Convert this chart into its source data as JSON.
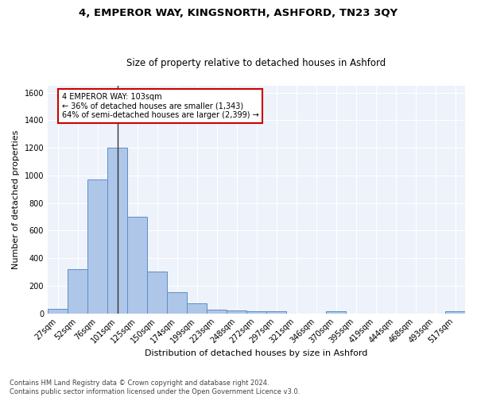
{
  "title1": "4, EMPEROR WAY, KINGSNORTH, ASHFORD, TN23 3QY",
  "title2": "Size of property relative to detached houses in Ashford",
  "xlabel": "Distribution of detached houses by size in Ashford",
  "ylabel": "Number of detached properties",
  "categories": [
    "27sqm",
    "52sqm",
    "76sqm",
    "101sqm",
    "125sqm",
    "150sqm",
    "174sqm",
    "199sqm",
    "223sqm",
    "248sqm",
    "272sqm",
    "297sqm",
    "321sqm",
    "346sqm",
    "370sqm",
    "395sqm",
    "419sqm",
    "444sqm",
    "468sqm",
    "493sqm",
    "517sqm"
  ],
  "values": [
    30,
    320,
    970,
    1200,
    700,
    305,
    155,
    70,
    27,
    18,
    14,
    13,
    0,
    0,
    12,
    0,
    0,
    0,
    0,
    0,
    12
  ],
  "bar_color": "#aec6e8",
  "bar_edge_color": "#5b8fc9",
  "highlight_bar_index": 3,
  "highlight_line_color": "#333333",
  "annotation_text": "4 EMPEROR WAY: 103sqm\n← 36% of detached houses are smaller (1,343)\n64% of semi-detached houses are larger (2,399) →",
  "annotation_box_color": "#ffffff",
  "annotation_box_edge": "#cc0000",
  "ylim": [
    0,
    1650
  ],
  "yticks": [
    0,
    200,
    400,
    600,
    800,
    1000,
    1200,
    1400,
    1600
  ],
  "bg_color": "#eef2fa",
  "grid_color": "#ffffff",
  "footnote": "Contains HM Land Registry data © Crown copyright and database right 2024.\nContains public sector information licensed under the Open Government Licence v3.0.",
  "title1_fontsize": 9.5,
  "title2_fontsize": 8.5,
  "xlabel_fontsize": 8,
  "ylabel_fontsize": 8,
  "tick_fontsize": 7,
  "annot_fontsize": 7,
  "footnote_fontsize": 6
}
